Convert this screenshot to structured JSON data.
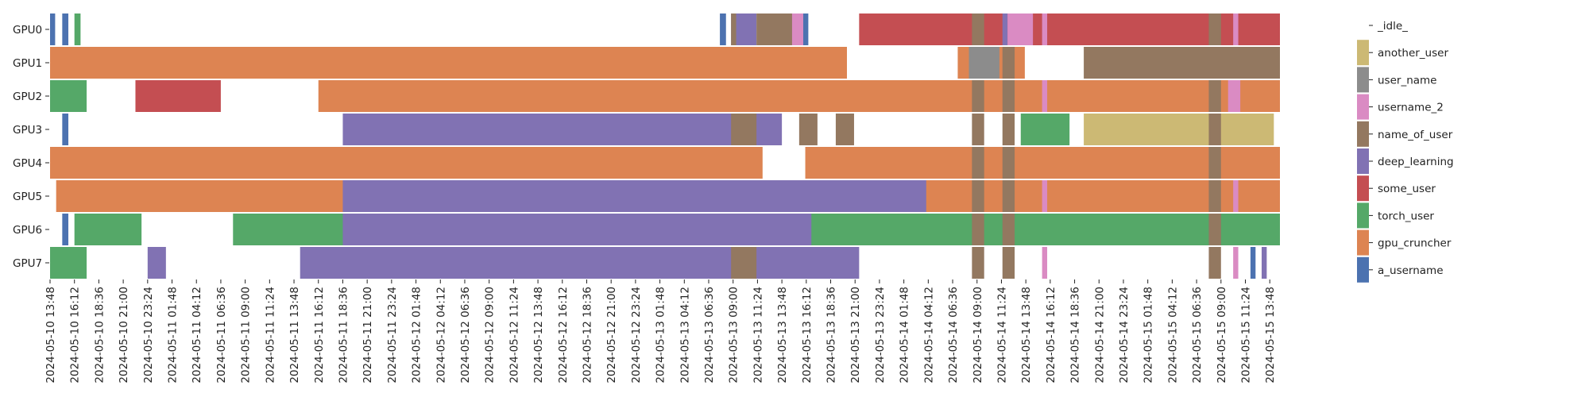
{
  "chart_data": {
    "type": "gantt",
    "title": "",
    "xlabel": "",
    "ylabel": "",
    "rows": [
      "GPU0",
      "GPU1",
      "GPU2",
      "GPU3",
      "GPU4",
      "GPU5",
      "GPU6",
      "GPU7"
    ],
    "x_tick_labels": [
      "2024-05-10 13:48",
      "2024-05-10 16:12",
      "2024-05-10 18:36",
      "2024-05-10 21:00",
      "2024-05-10 23:24",
      "2024-05-11 01:48",
      "2024-05-11 04:12",
      "2024-05-11 06:36",
      "2024-05-11 09:00",
      "2024-05-11 11:24",
      "2024-05-11 13:48",
      "2024-05-11 16:12",
      "2024-05-11 18:36",
      "2024-05-11 21:00",
      "2024-05-11 23:24",
      "2024-05-12 01:48",
      "2024-05-12 04:12",
      "2024-05-12 06:36",
      "2024-05-12 09:00",
      "2024-05-12 11:24",
      "2024-05-12 13:48",
      "2024-05-12 16:12",
      "2024-05-12 18:36",
      "2024-05-12 21:00",
      "2024-05-12 23:24",
      "2024-05-13 01:48",
      "2024-05-13 04:12",
      "2024-05-13 06:36",
      "2024-05-13 09:00",
      "2024-05-13 11:24",
      "2024-05-13 13:48",
      "2024-05-13 16:12",
      "2024-05-13 18:36",
      "2024-05-13 21:00",
      "2024-05-13 23:24",
      "2024-05-14 01:48",
      "2024-05-14 04:12",
      "2024-05-14 06:36",
      "2024-05-14 09:00",
      "2024-05-14 11:24",
      "2024-05-14 13:48",
      "2024-05-14 16:12",
      "2024-05-14 18:36",
      "2024-05-14 21:00",
      "2024-05-14 23:24",
      "2024-05-15 01:48",
      "2024-05-15 04:12",
      "2024-05-15 06:36",
      "2024-05-15 09:00",
      "2024-05-15 11:24",
      "2024-05-15 13:48"
    ],
    "x_unit": "hours since 2024-05-10 13:48 (tick spacing 2.4 h)",
    "xlim": [
      0,
      121
    ],
    "legend": [
      {
        "name": "_idle_",
        "color": "#ffffff"
      },
      {
        "name": "another_user",
        "color": "#ccb974"
      },
      {
        "name": "user_name",
        "color": "#8c8c8c"
      },
      {
        "name": "username_2",
        "color": "#da8bc3"
      },
      {
        "name": "name_of_user",
        "color": "#937860"
      },
      {
        "name": "deep_learning",
        "color": "#8172b3"
      },
      {
        "name": "some_user",
        "color": "#c44e52"
      },
      {
        "name": "torch_user",
        "color": "#55a868"
      },
      {
        "name": "gpu_cruncher",
        "color": "#dd8452"
      },
      {
        "name": "a_username",
        "color": "#4c72b0"
      }
    ],
    "legend_position": "right",
    "segments": [
      {
        "row": 0,
        "user": "a_username",
        "start": 0,
        "end": 0.5
      },
      {
        "row": 0,
        "user": "a_username",
        "start": 1.2,
        "end": 1.8
      },
      {
        "row": 0,
        "user": "torch_user",
        "start": 2.4,
        "end": 3.0
      },
      {
        "row": 0,
        "user": "a_username",
        "start": 65.9,
        "end": 66.5
      },
      {
        "row": 0,
        "user": "deep_learning",
        "start": 67.0,
        "end": 69.5
      },
      {
        "row": 0,
        "user": "name_of_user",
        "start": 67.0,
        "end": 67.5
      },
      {
        "row": 0,
        "user": "name_of_user",
        "start": 69.5,
        "end": 73.8
      },
      {
        "row": 0,
        "user": "username_2",
        "start": 73.0,
        "end": 74.1
      },
      {
        "row": 0,
        "user": "a_username",
        "start": 74.1,
        "end": 74.6
      },
      {
        "row": 0,
        "user": "some_user",
        "start": 79.6,
        "end": 121
      },
      {
        "row": 0,
        "user": "name_of_user",
        "start": 90.7,
        "end": 91.9
      },
      {
        "row": 0,
        "user": "deep_learning",
        "start": 93.7,
        "end": 94.2
      },
      {
        "row": 0,
        "user": "username_2",
        "start": 94.2,
        "end": 96.7
      },
      {
        "row": 0,
        "user": "username_2",
        "start": 97.6,
        "end": 98.1
      },
      {
        "row": 0,
        "user": "name_of_user",
        "start": 114.0,
        "end": 115.2
      },
      {
        "row": 0,
        "user": "username_2",
        "start": 116.4,
        "end": 116.9
      },
      {
        "row": 1,
        "user": "gpu_cruncher",
        "start": 0,
        "end": 78.4
      },
      {
        "row": 1,
        "user": "gpu_cruncher",
        "start": 89.3,
        "end": 95.9
      },
      {
        "row": 1,
        "user": "user_name",
        "start": 90.4,
        "end": 93.4
      },
      {
        "row": 1,
        "user": "name_of_user",
        "start": 93.7,
        "end": 94.9
      },
      {
        "row": 1,
        "user": "name_of_user",
        "start": 101.7,
        "end": 121
      },
      {
        "row": 2,
        "user": "torch_user",
        "start": 0,
        "end": 3.6
      },
      {
        "row": 2,
        "user": "some_user",
        "start": 8.4,
        "end": 16.8
      },
      {
        "row": 2,
        "user": "gpu_cruncher",
        "start": 26.4,
        "end": 121
      },
      {
        "row": 2,
        "user": "name_of_user",
        "start": 90.7,
        "end": 91.9
      },
      {
        "row": 2,
        "user": "name_of_user",
        "start": 93.7,
        "end": 94.9
      },
      {
        "row": 2,
        "user": "username_2",
        "start": 97.6,
        "end": 98.1
      },
      {
        "row": 2,
        "user": "name_of_user",
        "start": 114.0,
        "end": 115.2
      },
      {
        "row": 2,
        "user": "username_2",
        "start": 115.9,
        "end": 117.1
      },
      {
        "row": 3,
        "user": "a_username",
        "start": 1.2,
        "end": 1.8
      },
      {
        "row": 3,
        "user": "deep_learning",
        "start": 28.8,
        "end": 72.0
      },
      {
        "row": 3,
        "user": "name_of_user",
        "start": 67.0,
        "end": 69.5
      },
      {
        "row": 3,
        "user": "name_of_user",
        "start": 73.7,
        "end": 75.5
      },
      {
        "row": 3,
        "user": "name_of_user",
        "start": 77.3,
        "end": 79.1
      },
      {
        "row": 3,
        "user": "name_of_user",
        "start": 90.7,
        "end": 91.9
      },
      {
        "row": 3,
        "user": "name_of_user",
        "start": 93.7,
        "end": 94.9
      },
      {
        "row": 3,
        "user": "torch_user",
        "start": 95.5,
        "end": 100.3
      },
      {
        "row": 3,
        "user": "another_user",
        "start": 101.7,
        "end": 120.4
      },
      {
        "row": 3,
        "user": "name_of_user",
        "start": 114.0,
        "end": 115.2
      },
      {
        "row": 4,
        "user": "gpu_cruncher",
        "start": 0,
        "end": 70.1
      },
      {
        "row": 4,
        "user": "gpu_cruncher",
        "start": 74.3,
        "end": 121
      },
      {
        "row": 4,
        "user": "name_of_user",
        "start": 90.7,
        "end": 91.9
      },
      {
        "row": 4,
        "user": "name_of_user",
        "start": 93.7,
        "end": 94.9
      },
      {
        "row": 4,
        "user": "name_of_user",
        "start": 114.0,
        "end": 115.2
      },
      {
        "row": 5,
        "user": "gpu_cruncher",
        "start": 0.6,
        "end": 121
      },
      {
        "row": 5,
        "user": "deep_learning",
        "start": 28.8,
        "end": 86.2
      },
      {
        "row": 5,
        "user": "name_of_user",
        "start": 90.7,
        "end": 91.9
      },
      {
        "row": 5,
        "user": "name_of_user",
        "start": 93.7,
        "end": 94.9
      },
      {
        "row": 5,
        "user": "username_2",
        "start": 97.6,
        "end": 98.1
      },
      {
        "row": 5,
        "user": "name_of_user",
        "start": 114.0,
        "end": 115.2
      },
      {
        "row": 5,
        "user": "username_2",
        "start": 116.4,
        "end": 116.9
      },
      {
        "row": 6,
        "user": "a_username",
        "start": 1.2,
        "end": 1.8
      },
      {
        "row": 6,
        "user": "torch_user",
        "start": 2.4,
        "end": 9.0
      },
      {
        "row": 6,
        "user": "torch_user",
        "start": 18.0,
        "end": 121
      },
      {
        "row": 6,
        "user": "deep_learning",
        "start": 28.8,
        "end": 74.9
      },
      {
        "row": 6,
        "user": "name_of_user",
        "start": 90.7,
        "end": 91.9
      },
      {
        "row": 6,
        "user": "name_of_user",
        "start": 93.7,
        "end": 94.9
      },
      {
        "row": 6,
        "user": "name_of_user",
        "start": 114.0,
        "end": 115.2
      },
      {
        "row": 7,
        "user": "torch_user",
        "start": 0,
        "end": 3.6
      },
      {
        "row": 7,
        "user": "deep_learning",
        "start": 9.6,
        "end": 11.4
      },
      {
        "row": 7,
        "user": "deep_learning",
        "start": 24.6,
        "end": 79.6
      },
      {
        "row": 7,
        "user": "name_of_user",
        "start": 67.0,
        "end": 69.5
      },
      {
        "row": 7,
        "user": "name_of_user",
        "start": 90.7,
        "end": 91.9
      },
      {
        "row": 7,
        "user": "name_of_user",
        "start": 93.7,
        "end": 94.9
      },
      {
        "row": 7,
        "user": "username_2",
        "start": 97.6,
        "end": 98.1
      },
      {
        "row": 7,
        "user": "name_of_user",
        "start": 114.0,
        "end": 115.2
      },
      {
        "row": 7,
        "user": "username_2",
        "start": 116.4,
        "end": 116.9
      },
      {
        "row": 7,
        "user": "a_username",
        "start": 118.1,
        "end": 118.6
      },
      {
        "row": 7,
        "user": "deep_learning",
        "start": 119.2,
        "end": 119.7
      }
    ]
  }
}
